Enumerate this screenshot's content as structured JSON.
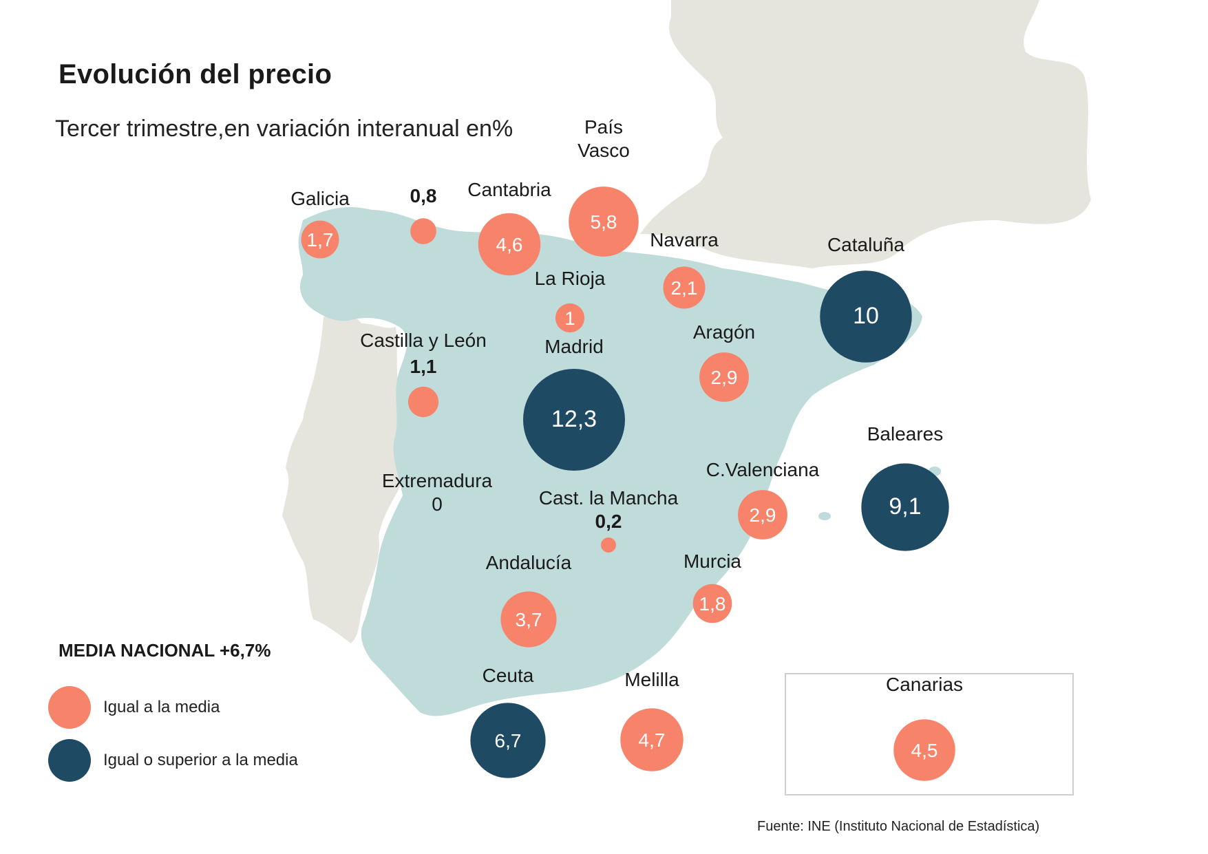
{
  "title": "Evolución del precio",
  "subtitle": "Tercer trimestre,en variación interanual en%",
  "national_average_label": "MEDIA NACIONAL +6,7%",
  "legend": [
    {
      "label": "Igual a la media",
      "color": "#f7846a"
    },
    {
      "label": "Igual o superior a la media",
      "color": "#1f4a64"
    }
  ],
  "source": "Fuente:  INE (Instituto Nacional de Estadística)",
  "colors": {
    "below": "#f7846a",
    "above": "#1f4a64",
    "spain_land": "#bfdbda",
    "other_land": "#e5e5dd",
    "ocean": "#ffffff"
  },
  "regions": [
    {
      "id": "galicia",
      "name": "Galicia",
      "value": 1.7,
      "display": "1,7",
      "category": "below"
    },
    {
      "id": "asturias",
      "name": "",
      "value": 0.8,
      "display": "0,8",
      "category": "below"
    },
    {
      "id": "cantabria",
      "name": "Cantabria",
      "value": 4.6,
      "display": "4,6",
      "category": "below"
    },
    {
      "id": "pais-vasco",
      "name": "País\nVasco",
      "value": 5.8,
      "display": "5,8",
      "category": "below"
    },
    {
      "id": "navarra",
      "name": "Navarra",
      "value": 2.1,
      "display": "2,1",
      "category": "below"
    },
    {
      "id": "la-rioja",
      "name": "La Rioja",
      "value": 1,
      "display": "1",
      "category": "below"
    },
    {
      "id": "cataluna",
      "name": "Cataluña",
      "value": 10,
      "display": "10",
      "category": "above"
    },
    {
      "id": "aragon",
      "name": "Aragón",
      "value": 2.9,
      "display": "2,9",
      "category": "below"
    },
    {
      "id": "castilla-leon",
      "name": "Castilla y León",
      "value": 1.1,
      "display": "1,1",
      "category": "below"
    },
    {
      "id": "madrid",
      "name": "Madrid",
      "value": 12.3,
      "display": "12,3",
      "category": "above"
    },
    {
      "id": "extremadura",
      "name": "Extremadura",
      "value": 0,
      "display": "0",
      "category": "below"
    },
    {
      "id": "castilla-la-mancha",
      "name": "Cast. la Mancha",
      "value": 0.2,
      "display": "0,2",
      "category": "below"
    },
    {
      "id": "c-valenciana",
      "name": "C.Valenciana",
      "value": 2.9,
      "display": "2,9",
      "category": "below"
    },
    {
      "id": "baleares",
      "name": "Baleares",
      "value": 9.1,
      "display": "9,1",
      "category": "above"
    },
    {
      "id": "andalucia",
      "name": "Andalucía",
      "value": 3.7,
      "display": "3,7",
      "category": "below"
    },
    {
      "id": "murcia",
      "name": "Murcia",
      "value": 1.8,
      "display": "1,8",
      "category": "below"
    },
    {
      "id": "ceuta",
      "name": "Ceuta",
      "value": 6.7,
      "display": "6,7",
      "category": "above"
    },
    {
      "id": "melilla",
      "name": "Melilla",
      "value": 4.7,
      "display": "4,7",
      "category": "below"
    },
    {
      "id": "canarias",
      "name": "Canarias",
      "value": 4.5,
      "display": "4,5",
      "category": "below"
    }
  ]
}
